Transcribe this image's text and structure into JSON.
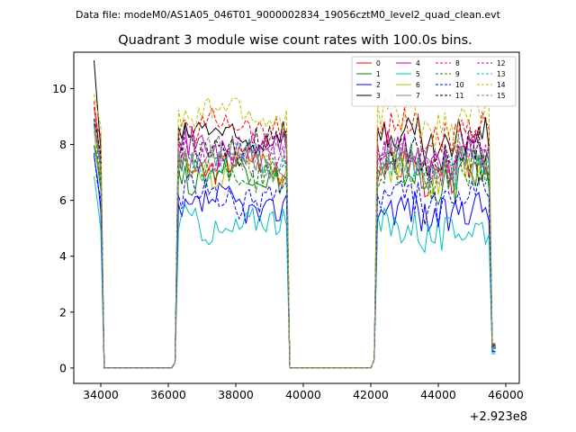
{
  "chart_data": {
    "type": "line",
    "suptitle": "Data file: modeM0/AS1A05_046T01_9000002834_19056cztM0_level2_quad_clean.evt",
    "title": "Quadrant 3 module wise count rates with 100.0s bins.",
    "xlabel": "",
    "ylabel": "",
    "x_offset_label": "+2.923e8",
    "xlim": [
      33200,
      46400
    ],
    "ylim": [
      -0.55,
      11.3
    ],
    "xticks": [
      34000,
      36000,
      38000,
      40000,
      42000,
      44000,
      46000
    ],
    "xtick_labels": [
      "34000",
      "36000",
      "38000",
      "40000",
      "42000",
      "44000",
      "46000"
    ],
    "yticks": [
      0,
      2,
      4,
      6,
      8,
      10
    ],
    "ytick_labels": [
      "0",
      "2",
      "4",
      "6",
      "8",
      "10"
    ],
    "grid": false,
    "legend_position": "top-right",
    "segments": [
      {
        "start": 33800,
        "end": 34200
      },
      {
        "start": 34200,
        "end": 36200,
        "zero": true
      },
      {
        "start": 36200,
        "end": 39600
      },
      {
        "start": 39600,
        "end": 42100,
        "zero": true
      },
      {
        "start": 42100,
        "end": 45700
      }
    ],
    "series": [
      {
        "name": "0",
        "color": "#ff0000",
        "dash": "solid",
        "level": 7.3,
        "start": 9.5
      },
      {
        "name": "1",
        "color": "#008000",
        "dash": "solid",
        "level": 7.0,
        "start": 8.0
      },
      {
        "name": "2",
        "color": "#0000ff",
        "dash": "solid",
        "level": 5.8,
        "start": 7.5
      },
      {
        "name": "3",
        "color": "#000000",
        "dash": "solid",
        "level": 8.3,
        "start": 10.8
      },
      {
        "name": "4",
        "color": "#bf00bf",
        "dash": "solid",
        "level": 7.8,
        "start": 9.0
      },
      {
        "name": "5",
        "color": "#00bfbf",
        "dash": "solid",
        "level": 5.1,
        "start": 7.0
      },
      {
        "name": "6",
        "color": "#bfbf00",
        "dash": "solid",
        "level": 7.2,
        "start": 8.5
      },
      {
        "name": "7",
        "color": "#808080",
        "dash": "solid",
        "level": 7.5,
        "start": 8.8
      },
      {
        "name": "8",
        "color": "#ff0000",
        "dash": "dashed",
        "level": 8.7,
        "start": 9.3
      },
      {
        "name": "9",
        "color": "#008000",
        "dash": "dashed",
        "level": 7.1,
        "start": 8.2
      },
      {
        "name": "10",
        "color": "#0000ff",
        "dash": "dashed",
        "level": 6.1,
        "start": 7.8
      },
      {
        "name": "11",
        "color": "#000000",
        "dash": "dashed",
        "level": 7.9,
        "start": 8.9
      },
      {
        "name": "12",
        "color": "#bf00bf",
        "dash": "dashed",
        "level": 7.7,
        "start": 8.6
      },
      {
        "name": "13",
        "color": "#00bfbf",
        "dash": "dashed",
        "level": 7.4,
        "start": 8.4
      },
      {
        "name": "14",
        "color": "#bfbf00",
        "dash": "dashed",
        "level": 9.1,
        "start": 10.0
      },
      {
        "name": "15",
        "color": "#808080",
        "dash": "dashed",
        "level": 7.6,
        "start": 8.7
      }
    ]
  }
}
